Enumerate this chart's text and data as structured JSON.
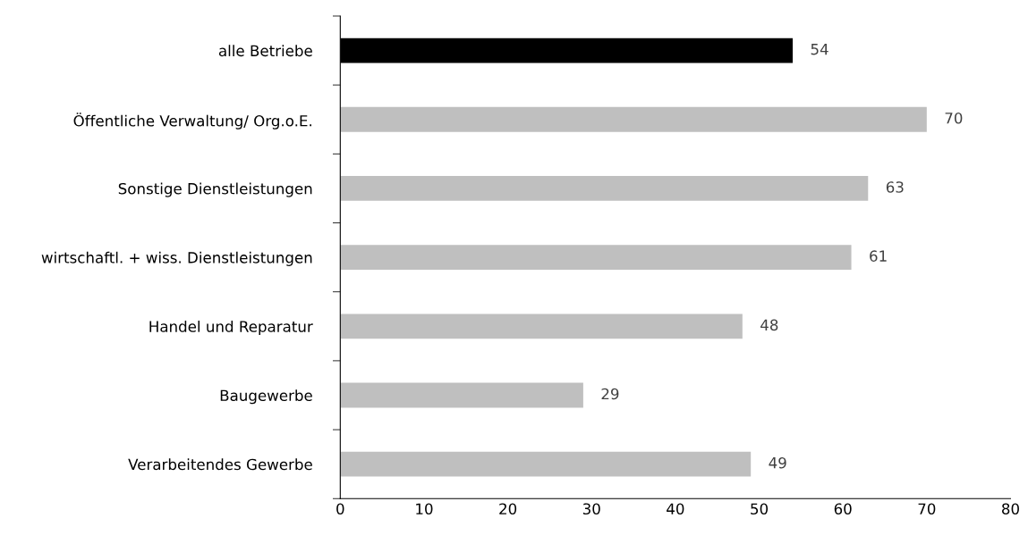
{
  "chart_data": {
    "type": "bar",
    "orientation": "horizontal",
    "categories": [
      "alle Betriebe",
      "Öffentliche Verwaltung/ Org.o.E.",
      "Sonstige Dienstleistungen",
      "wirtschaftl. + wiss. Dienstleistungen",
      "Handel und Reparatur",
      "Baugewerbe",
      "Verarbeitendes Gewerbe"
    ],
    "values": [
      54,
      70,
      63,
      61,
      48,
      29,
      49
    ],
    "colors": [
      "#000000",
      "#bfbfbf",
      "#bfbfbf",
      "#bfbfbf",
      "#bfbfbf",
      "#bfbfbf",
      "#bfbfbf"
    ],
    "data_labels": true,
    "xlim": [
      0,
      80
    ],
    "xticks": [
      0,
      10,
      20,
      30,
      40,
      50,
      60,
      70,
      80
    ],
    "grid": false,
    "legend": false
  }
}
